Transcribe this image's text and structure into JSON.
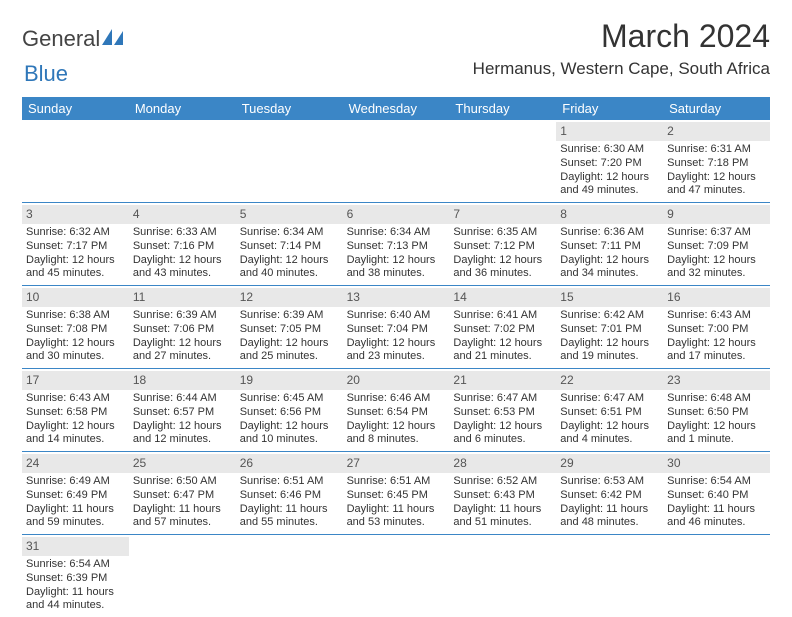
{
  "logo": {
    "general": "General",
    "blue": "Blue"
  },
  "title": "March 2024",
  "location": "Hermanus, Western Cape, South Africa",
  "weekdays": [
    "Sunday",
    "Monday",
    "Tuesday",
    "Wednesday",
    "Thursday",
    "Friday",
    "Saturday"
  ],
  "colors": {
    "header_bg": "#3b86c6",
    "header_text": "#ffffff",
    "daynum_bg": "#e8e8e8",
    "border": "#3b86c6",
    "text": "#333333"
  },
  "weeks": [
    [
      null,
      null,
      null,
      null,
      null,
      {
        "n": "1",
        "sr": "6:30 AM",
        "ss": "7:20 PM",
        "dl": "12 hours and 49 minutes."
      },
      {
        "n": "2",
        "sr": "6:31 AM",
        "ss": "7:18 PM",
        "dl": "12 hours and 47 minutes."
      }
    ],
    [
      {
        "n": "3",
        "sr": "6:32 AM",
        "ss": "7:17 PM",
        "dl": "12 hours and 45 minutes."
      },
      {
        "n": "4",
        "sr": "6:33 AM",
        "ss": "7:16 PM",
        "dl": "12 hours and 43 minutes."
      },
      {
        "n": "5",
        "sr": "6:34 AM",
        "ss": "7:14 PM",
        "dl": "12 hours and 40 minutes."
      },
      {
        "n": "6",
        "sr": "6:34 AM",
        "ss": "7:13 PM",
        "dl": "12 hours and 38 minutes."
      },
      {
        "n": "7",
        "sr": "6:35 AM",
        "ss": "7:12 PM",
        "dl": "12 hours and 36 minutes."
      },
      {
        "n": "8",
        "sr": "6:36 AM",
        "ss": "7:11 PM",
        "dl": "12 hours and 34 minutes."
      },
      {
        "n": "9",
        "sr": "6:37 AM",
        "ss": "7:09 PM",
        "dl": "12 hours and 32 minutes."
      }
    ],
    [
      {
        "n": "10",
        "sr": "6:38 AM",
        "ss": "7:08 PM",
        "dl": "12 hours and 30 minutes."
      },
      {
        "n": "11",
        "sr": "6:39 AM",
        "ss": "7:06 PM",
        "dl": "12 hours and 27 minutes."
      },
      {
        "n": "12",
        "sr": "6:39 AM",
        "ss": "7:05 PM",
        "dl": "12 hours and 25 minutes."
      },
      {
        "n": "13",
        "sr": "6:40 AM",
        "ss": "7:04 PM",
        "dl": "12 hours and 23 minutes."
      },
      {
        "n": "14",
        "sr": "6:41 AM",
        "ss": "7:02 PM",
        "dl": "12 hours and 21 minutes."
      },
      {
        "n": "15",
        "sr": "6:42 AM",
        "ss": "7:01 PM",
        "dl": "12 hours and 19 minutes."
      },
      {
        "n": "16",
        "sr": "6:43 AM",
        "ss": "7:00 PM",
        "dl": "12 hours and 17 minutes."
      }
    ],
    [
      {
        "n": "17",
        "sr": "6:43 AM",
        "ss": "6:58 PM",
        "dl": "12 hours and 14 minutes."
      },
      {
        "n": "18",
        "sr": "6:44 AM",
        "ss": "6:57 PM",
        "dl": "12 hours and 12 minutes."
      },
      {
        "n": "19",
        "sr": "6:45 AM",
        "ss": "6:56 PM",
        "dl": "12 hours and 10 minutes."
      },
      {
        "n": "20",
        "sr": "6:46 AM",
        "ss": "6:54 PM",
        "dl": "12 hours and 8 minutes."
      },
      {
        "n": "21",
        "sr": "6:47 AM",
        "ss": "6:53 PM",
        "dl": "12 hours and 6 minutes."
      },
      {
        "n": "22",
        "sr": "6:47 AM",
        "ss": "6:51 PM",
        "dl": "12 hours and 4 minutes."
      },
      {
        "n": "23",
        "sr": "6:48 AM",
        "ss": "6:50 PM",
        "dl": "12 hours and 1 minute."
      }
    ],
    [
      {
        "n": "24",
        "sr": "6:49 AM",
        "ss": "6:49 PM",
        "dl": "11 hours and 59 minutes."
      },
      {
        "n": "25",
        "sr": "6:50 AM",
        "ss": "6:47 PM",
        "dl": "11 hours and 57 minutes."
      },
      {
        "n": "26",
        "sr": "6:51 AM",
        "ss": "6:46 PM",
        "dl": "11 hours and 55 minutes."
      },
      {
        "n": "27",
        "sr": "6:51 AM",
        "ss": "6:45 PM",
        "dl": "11 hours and 53 minutes."
      },
      {
        "n": "28",
        "sr": "6:52 AM",
        "ss": "6:43 PM",
        "dl": "11 hours and 51 minutes."
      },
      {
        "n": "29",
        "sr": "6:53 AM",
        "ss": "6:42 PM",
        "dl": "11 hours and 48 minutes."
      },
      {
        "n": "30",
        "sr": "6:54 AM",
        "ss": "6:40 PM",
        "dl": "11 hours and 46 minutes."
      }
    ],
    [
      {
        "n": "31",
        "sr": "6:54 AM",
        "ss": "6:39 PM",
        "dl": "11 hours and 44 minutes."
      },
      null,
      null,
      null,
      null,
      null,
      null
    ]
  ],
  "labels": {
    "sunrise": "Sunrise: ",
    "sunset": "Sunset: ",
    "daylight": "Daylight: "
  }
}
